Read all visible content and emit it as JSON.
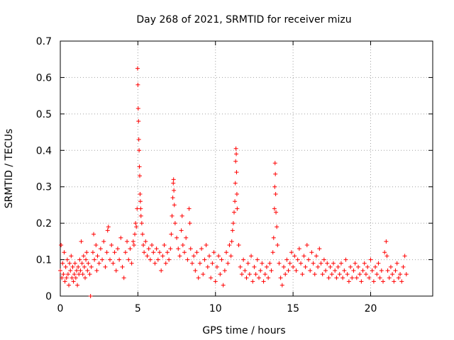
{
  "chart_data": {
    "type": "scatter",
    "title": "Day 268 of 2021, SRMTID for receiver mizu",
    "xlabel": "GPS time / hours",
    "ylabel": "SRMTID / TECUs",
    "xlim": [
      0,
      24
    ],
    "ylim": [
      0,
      0.7
    ],
    "xticks": [
      0,
      5,
      10,
      15,
      20
    ],
    "yticks": [
      0,
      0.1,
      0.2,
      0.3,
      0.4,
      0.5,
      0.6,
      0.7
    ],
    "xtick_labels": [
      "0",
      "5",
      "10",
      "15",
      "20"
    ],
    "ytick_labels": [
      "0",
      "0.1",
      "0.2",
      "0.3",
      "0.4",
      "0.5",
      "0.6",
      "0.7"
    ],
    "grid": true,
    "marker": "+",
    "color": "#ff0000",
    "series": [
      {
        "name": "SRMTID",
        "points": [
          [
            0.0,
            0.07
          ],
          [
            0.05,
            0.14
          ],
          [
            0.1,
            0.05
          ],
          [
            0.15,
            0.09
          ],
          [
            0.2,
            0.06
          ],
          [
            0.25,
            0.12
          ],
          [
            0.3,
            0.04
          ],
          [
            0.35,
            0.08
          ],
          [
            0.4,
            0.05
          ],
          [
            0.45,
            0.1
          ],
          [
            0.5,
            0.06
          ],
          [
            0.55,
            0.03
          ],
          [
            0.6,
            0.09
          ],
          [
            0.65,
            0.07
          ],
          [
            0.7,
            0.11
          ],
          [
            0.75,
            0.05
          ],
          [
            0.8,
            0.08
          ],
          [
            0.85,
            0.04
          ],
          [
            0.9,
            0.06
          ],
          [
            0.95,
            0.09
          ],
          [
            1.0,
            0.05
          ],
          [
            1.05,
            0.07
          ],
          [
            1.1,
            0.03
          ],
          [
            1.15,
            0.08
          ],
          [
            1.2,
            0.06
          ],
          [
            1.25,
            0.1
          ],
          [
            1.3,
            0.07
          ],
          [
            1.35,
            0.15
          ],
          [
            1.4,
            0.09
          ],
          [
            1.45,
            0.06
          ],
          [
            1.5,
            0.11
          ],
          [
            1.55,
            0.08
          ],
          [
            1.6,
            0.05
          ],
          [
            1.65,
            0.1
          ],
          [
            1.7,
            0.12
          ],
          [
            1.75,
            0.07
          ],
          [
            1.8,
            0.09
          ],
          [
            1.9,
            0.06
          ],
          [
            1.95,
            0.0
          ],
          [
            2.0,
            0.08
          ],
          [
            2.1,
            0.12
          ],
          [
            2.15,
            0.17
          ],
          [
            2.2,
            0.1
          ],
          [
            2.3,
            0.14
          ],
          [
            2.35,
            0.07
          ],
          [
            2.4,
            0.11
          ],
          [
            2.5,
            0.09
          ],
          [
            2.6,
            0.13
          ],
          [
            2.7,
            0.1
          ],
          [
            2.8,
            0.15
          ],
          [
            2.9,
            0.08
          ],
          [
            3.0,
            0.12
          ],
          [
            3.05,
            0.18
          ],
          [
            3.1,
            0.19
          ],
          [
            3.2,
            0.1
          ],
          [
            3.3,
            0.14
          ],
          [
            3.4,
            0.09
          ],
          [
            3.5,
            0.12
          ],
          [
            3.6,
            0.07
          ],
          [
            3.7,
            0.13
          ],
          [
            3.8,
            0.1
          ],
          [
            3.9,
            0.16
          ],
          [
            4.0,
            0.08
          ],
          [
            4.1,
            0.05
          ],
          [
            4.2,
            0.12
          ],
          [
            4.3,
            0.15
          ],
          [
            4.4,
            0.1
          ],
          [
            4.5,
            0.13
          ],
          [
            4.6,
            0.09
          ],
          [
            4.7,
            0.15
          ],
          [
            4.75,
            0.14
          ],
          [
            4.8,
            0.17
          ],
          [
            4.85,
            0.2
          ],
          [
            4.9,
            0.19
          ],
          [
            4.95,
            0.24
          ],
          [
            4.98,
            0.625
          ],
          [
            5.0,
            0.58
          ],
          [
            5.02,
            0.515
          ],
          [
            5.04,
            0.48
          ],
          [
            5.06,
            0.43
          ],
          [
            5.08,
            0.4
          ],
          [
            5.1,
            0.355
          ],
          [
            5.12,
            0.33
          ],
          [
            5.14,
            0.28
          ],
          [
            5.16,
            0.26
          ],
          [
            5.18,
            0.24
          ],
          [
            5.2,
            0.22
          ],
          [
            5.25,
            0.2
          ],
          [
            5.3,
            0.17
          ],
          [
            5.35,
            0.14
          ],
          [
            5.4,
            0.12
          ],
          [
            5.5,
            0.15
          ],
          [
            5.6,
            0.11
          ],
          [
            5.7,
            0.13
          ],
          [
            5.8,
            0.1
          ],
          [
            5.9,
            0.14
          ],
          [
            6.0,
            0.12
          ],
          [
            6.1,
            0.09
          ],
          [
            6.2,
            0.13
          ],
          [
            6.3,
            0.1
          ],
          [
            6.4,
            0.12
          ],
          [
            6.5,
            0.07
          ],
          [
            6.6,
            0.11
          ],
          [
            6.7,
            0.14
          ],
          [
            6.8,
            0.09
          ],
          [
            6.9,
            0.12
          ],
          [
            7.0,
            0.1
          ],
          [
            7.1,
            0.13
          ],
          [
            7.15,
            0.17
          ],
          [
            7.2,
            0.22
          ],
          [
            7.25,
            0.27
          ],
          [
            7.28,
            0.31
          ],
          [
            7.3,
            0.32
          ],
          [
            7.32,
            0.29
          ],
          [
            7.35,
            0.25
          ],
          [
            7.4,
            0.2
          ],
          [
            7.5,
            0.16
          ],
          [
            7.6,
            0.13
          ],
          [
            7.7,
            0.11
          ],
          [
            7.8,
            0.18
          ],
          [
            7.85,
            0.22
          ],
          [
            7.9,
            0.14
          ],
          [
            8.0,
            0.12
          ],
          [
            8.1,
            0.16
          ],
          [
            8.2,
            0.1
          ],
          [
            8.3,
            0.24
          ],
          [
            8.35,
            0.2
          ],
          [
            8.4,
            0.13
          ],
          [
            8.5,
            0.09
          ],
          [
            8.6,
            0.11
          ],
          [
            8.7,
            0.07
          ],
          [
            8.8,
            0.12
          ],
          [
            8.9,
            0.05
          ],
          [
            9.0,
            0.09
          ],
          [
            9.1,
            0.13
          ],
          [
            9.2,
            0.06
          ],
          [
            9.3,
            0.1
          ],
          [
            9.4,
            0.14
          ],
          [
            9.5,
            0.08
          ],
          [
            9.6,
            0.11
          ],
          [
            9.7,
            0.05
          ],
          [
            9.8,
            0.09
          ],
          [
            9.9,
            0.12
          ],
          [
            10.0,
            0.04
          ],
          [
            10.1,
            0.08
          ],
          [
            10.2,
            0.11
          ],
          [
            10.3,
            0.06
          ],
          [
            10.4,
            0.1
          ],
          [
            10.5,
            0.03
          ],
          [
            10.6,
            0.07
          ],
          [
            10.7,
            0.12
          ],
          [
            10.8,
            0.09
          ],
          [
            10.9,
            0.14
          ],
          [
            11.0,
            0.11
          ],
          [
            11.05,
            0.15
          ],
          [
            11.1,
            0.18
          ],
          [
            11.15,
            0.2
          ],
          [
            11.2,
            0.23
          ],
          [
            11.25,
            0.26
          ],
          [
            11.28,
            0.31
          ],
          [
            11.3,
            0.37
          ],
          [
            11.32,
            0.405
          ],
          [
            11.34,
            0.39
          ],
          [
            11.36,
            0.34
          ],
          [
            11.38,
            0.28
          ],
          [
            11.4,
            0.24
          ],
          [
            11.5,
            0.14
          ],
          [
            11.6,
            0.08
          ],
          [
            11.7,
            0.06
          ],
          [
            11.8,
            0.1
          ],
          [
            11.9,
            0.07
          ],
          [
            12.0,
            0.05
          ],
          [
            12.1,
            0.09
          ],
          [
            12.2,
            0.06
          ],
          [
            12.3,
            0.11
          ],
          [
            12.4,
            0.04
          ],
          [
            12.5,
            0.08
          ],
          [
            12.6,
            0.06
          ],
          [
            12.7,
            0.1
          ],
          [
            12.8,
            0.05
          ],
          [
            12.9,
            0.07
          ],
          [
            13.0,
            0.09
          ],
          [
            13.1,
            0.04
          ],
          [
            13.2,
            0.06
          ],
          [
            13.3,
            0.08
          ],
          [
            13.4,
            0.05
          ],
          [
            13.5,
            0.09
          ],
          [
            13.6,
            0.07
          ],
          [
            13.7,
            0.12
          ],
          [
            13.75,
            0.16
          ],
          [
            13.8,
            0.24
          ],
          [
            13.82,
            0.3
          ],
          [
            13.84,
            0.365
          ],
          [
            13.86,
            0.335
          ],
          [
            13.88,
            0.28
          ],
          [
            13.9,
            0.23
          ],
          [
            13.95,
            0.19
          ],
          [
            14.0,
            0.14
          ],
          [
            14.1,
            0.09
          ],
          [
            14.2,
            0.05
          ],
          [
            14.3,
            0.03
          ],
          [
            14.4,
            0.08
          ],
          [
            14.5,
            0.06
          ],
          [
            14.6,
            0.1
          ],
          [
            14.7,
            0.07
          ],
          [
            14.8,
            0.09
          ],
          [
            14.9,
            0.12
          ],
          [
            15.0,
            0.08
          ],
          [
            15.1,
            0.11
          ],
          [
            15.2,
            0.07
          ],
          [
            15.3,
            0.1
          ],
          [
            15.4,
            0.13
          ],
          [
            15.5,
            0.09
          ],
          [
            15.6,
            0.06
          ],
          [
            15.7,
            0.11
          ],
          [
            15.8,
            0.08
          ],
          [
            15.9,
            0.14
          ],
          [
            16.0,
            0.1
          ],
          [
            16.1,
            0.07
          ],
          [
            16.2,
            0.12
          ],
          [
            16.3,
            0.09
          ],
          [
            16.4,
            0.06
          ],
          [
            16.5,
            0.11
          ],
          [
            16.6,
            0.08
          ],
          [
            16.7,
            0.13
          ],
          [
            16.8,
            0.09
          ],
          [
            16.9,
            0.06
          ],
          [
            17.0,
            0.1
          ],
          [
            17.1,
            0.07
          ],
          [
            17.2,
            0.09
          ],
          [
            17.3,
            0.05
          ],
          [
            17.4,
            0.08
          ],
          [
            17.5,
            0.06
          ],
          [
            17.6,
            0.09
          ],
          [
            17.7,
            0.07
          ],
          [
            17.8,
            0.05
          ],
          [
            17.9,
            0.08
          ],
          [
            18.0,
            0.06
          ],
          [
            18.1,
            0.09
          ],
          [
            18.2,
            0.05
          ],
          [
            18.3,
            0.07
          ],
          [
            18.4,
            0.1
          ],
          [
            18.5,
            0.06
          ],
          [
            18.6,
            0.04
          ],
          [
            18.7,
            0.08
          ],
          [
            18.8,
            0.05
          ],
          [
            18.9,
            0.07
          ],
          [
            19.0,
            0.09
          ],
          [
            19.1,
            0.05
          ],
          [
            19.2,
            0.08
          ],
          [
            19.3,
            0.06
          ],
          [
            19.4,
            0.04
          ],
          [
            19.5,
            0.07
          ],
          [
            19.6,
            0.09
          ],
          [
            19.7,
            0.06
          ],
          [
            19.8,
            0.08
          ],
          [
            19.9,
            0.05
          ],
          [
            20.0,
            0.1
          ],
          [
            20.1,
            0.07
          ],
          [
            20.2,
            0.04
          ],
          [
            20.3,
            0.08
          ],
          [
            20.4,
            0.06
          ],
          [
            20.5,
            0.09
          ],
          [
            20.6,
            0.05
          ],
          [
            20.7,
            0.07
          ],
          [
            20.8,
            0.04
          ],
          [
            20.9,
            0.12
          ],
          [
            21.0,
            0.15
          ],
          [
            21.05,
            0.11
          ],
          [
            21.1,
            0.07
          ],
          [
            21.2,
            0.05
          ],
          [
            21.3,
            0.08
          ],
          [
            21.4,
            0.06
          ],
          [
            21.5,
            0.04
          ],
          [
            21.6,
            0.07
          ],
          [
            21.7,
            0.09
          ],
          [
            21.8,
            0.05
          ],
          [
            21.9,
            0.06
          ],
          [
            22.0,
            0.04
          ],
          [
            22.1,
            0.08
          ],
          [
            22.2,
            0.11
          ],
          [
            22.3,
            0.06
          ]
        ]
      }
    ]
  }
}
